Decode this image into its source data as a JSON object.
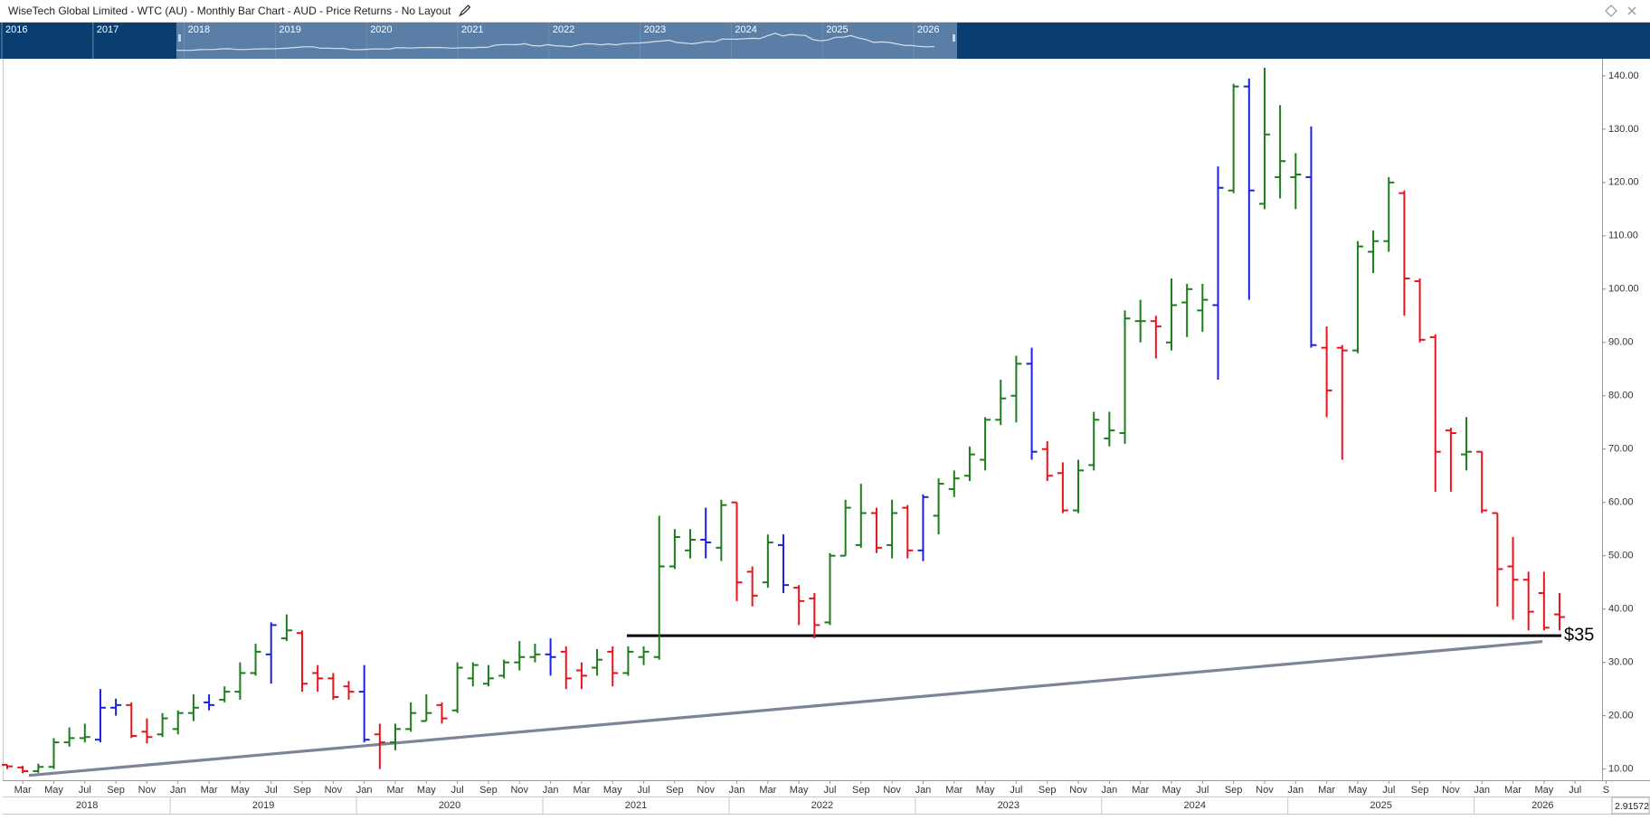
{
  "title": "WiseTech Global Limited - WTC (AU) - Monthly Bar Chart - AUD - Price Returns - No Layout",
  "navigator": {
    "years": [
      "2016",
      "2017",
      "2018",
      "2019",
      "2020",
      "2021",
      "2022",
      "2023",
      "2024",
      "2025",
      "2026"
    ]
  },
  "corner_readout": "2.91572",
  "chart_data": {
    "type": "ohlc",
    "categories": [
      null,
      "Mar",
      null,
      "May",
      null,
      "Jul",
      null,
      "Sep",
      null,
      "Nov",
      null,
      "Jan",
      null,
      "Mar",
      null,
      "May",
      null,
      "Jul",
      null,
      "Sep",
      null,
      "Nov",
      null,
      "Jan",
      null,
      "Mar",
      null,
      "May",
      null,
      "Jul",
      null,
      "Sep",
      null,
      "Nov",
      null,
      "Jan",
      null,
      "Mar",
      null,
      "May",
      null,
      "Jul",
      null,
      "Sep",
      null,
      "Nov",
      null,
      "Jan",
      null,
      "Mar",
      null,
      "May",
      null,
      "Jul",
      null,
      "Sep",
      null,
      "Nov",
      null,
      "Jan",
      null,
      "Mar",
      null,
      "May",
      null,
      "Jul",
      null,
      "Sep",
      null,
      "Nov",
      null,
      "Jan",
      null,
      "Mar",
      null,
      "May",
      null,
      "Jul",
      null,
      "Sep",
      null,
      "Nov",
      null,
      "Jan",
      null,
      "Mar",
      null,
      "May",
      null,
      "Jul",
      null,
      "Sep",
      null,
      "Nov",
      null,
      "Jan",
      null,
      "Mar",
      null,
      "May",
      null,
      "Jul",
      null,
      "S"
    ],
    "years": [
      "2018",
      "2019",
      "2020",
      "2021",
      "2022",
      "2023",
      "2024",
      "2025",
      "2026"
    ],
    "open": [
      10.8,
      10.3,
      9.6,
      10.4,
      15.0,
      15.8,
      15.5,
      21.5,
      22.0,
      17.0,
      16.5,
      17.5,
      20.5,
      22.5,
      23.0,
      24.5,
      28.0,
      31.5,
      34.5,
      35.5,
      28.0,
      27.0,
      25.5,
      24.5,
      16.5,
      15.0,
      17.5,
      19.0,
      22.0,
      21.0,
      27.0,
      26.0,
      27.5,
      30.0,
      31.0,
      31.5,
      32.0,
      28.5,
      29.0,
      32.0,
      28.0,
      31.0,
      31.0,
      48.0,
      51.0,
      53.0,
      51.5,
      60.0,
      47.0,
      45.0,
      52.0,
      44.0,
      42.0,
      37.5,
      50.0,
      52.0,
      58.0,
      52.0,
      59.0,
      51.0,
      57.5,
      62.5,
      65.0,
      68.0,
      75.5,
      80.0,
      86.0,
      70.0,
      65.5,
      58.5,
      67.0,
      72.0,
      73.0,
      94.0,
      94.0,
      90.0,
      97.5,
      96.0,
      97.0,
      118.5,
      138.0,
      116.0,
      121.0,
      121.0,
      121.0,
      89.0,
      89.0,
      88.5,
      107.0,
      109.0,
      118.0,
      101.5,
      91.0,
      73.5,
      69.0,
      69.5,
      58.0,
      48.0,
      45.5,
      43.0,
      39.0,
      null,
      null,
      null
    ],
    "high": [
      10.8,
      10.6,
      11.0,
      15.8,
      17.8,
      18.5,
      25.0,
      23.2,
      22.5,
      19.5,
      20.5,
      21.0,
      24.0,
      24.0,
      25.5,
      30.0,
      33.5,
      37.5,
      39.0,
      36.0,
      29.5,
      28.0,
      26.5,
      29.5,
      18.5,
      18.5,
      22.5,
      24.0,
      22.5,
      30.0,
      30.0,
      29.5,
      30.5,
      34.0,
      33.5,
      34.5,
      33.0,
      30.0,
      32.5,
      33.0,
      33.0,
      33.0,
      57.5,
      55.0,
      55.0,
      59.0,
      60.5,
      60.0,
      48.0,
      54.0,
      54.0,
      44.5,
      43.0,
      50.5,
      60.5,
      63.5,
      59.0,
      60.5,
      59.5,
      61.5,
      64.5,
      66.0,
      70.5,
      76.0,
      83.0,
      87.5,
      89.0,
      71.5,
      67.5,
      68.0,
      77.0,
      77.0,
      96.0,
      98.0,
      95.0,
      102.0,
      101.0,
      101.0,
      123.0,
      138.5,
      139.5,
      141.5,
      134.5,
      125.5,
      130.5,
      93.0,
      89.5,
      109.0,
      111.0,
      121.0,
      118.5,
      102.0,
      91.5,
      74.0,
      76.0,
      69.5,
      58.0,
      53.5,
      47.0,
      47.0,
      43.0,
      null,
      null,
      null
    ],
    "low": [
      10.0,
      9.2,
      9.3,
      10.0,
      14.2,
      15.0,
      15.0,
      20.0,
      15.8,
      14.8,
      16.0,
      16.5,
      19.0,
      21.0,
      22.5,
      23.0,
      27.5,
      26.0,
      34.0,
      24.5,
      24.5,
      23.0,
      23.0,
      15.0,
      10.0,
      13.5,
      17.0,
      19.0,
      18.5,
      20.5,
      25.5,
      25.5,
      27.0,
      28.5,
      30.0,
      27.5,
      25.0,
      25.0,
      27.5,
      25.5,
      27.5,
      29.5,
      30.5,
      47.5,
      49.5,
      49.5,
      49.0,
      41.5,
      40.5,
      44.0,
      43.0,
      37.0,
      34.5,
      37.0,
      50.0,
      51.5,
      50.5,
      49.5,
      49.5,
      49.0,
      54.0,
      61.0,
      64.0,
      66.0,
      74.5,
      75.0,
      68.0,
      64.0,
      58.0,
      58.0,
      66.0,
      70.5,
      71.0,
      90.0,
      87.0,
      88.5,
      91.0,
      92.0,
      83.0,
      118.0,
      98.0,
      115.0,
      117.0,
      115.0,
      89.0,
      76.0,
      68.0,
      88.0,
      103.0,
      107.0,
      95.0,
      90.0,
      62.0,
      62.0,
      66.0,
      58.0,
      40.5,
      38.0,
      36.0,
      36.0,
      36.0,
      null,
      null,
      null
    ],
    "close": [
      10.5,
      9.6,
      10.4,
      15.0,
      15.8,
      16.0,
      21.5,
      22.0,
      16.2,
      16.0,
      19.5,
      20.5,
      21.5,
      22.0,
      24.5,
      28.0,
      32.0,
      37.0,
      36.0,
      26.0,
      27.0,
      23.5,
      24.5,
      15.5,
      15.0,
      17.5,
      20.5,
      20.5,
      19.5,
      29.0,
      29.5,
      27.0,
      30.0,
      31.0,
      31.5,
      31.0,
      27.0,
      27.5,
      30.5,
      28.0,
      32.0,
      32.0,
      48.0,
      53.5,
      53.0,
      52.5,
      59.5,
      45.0,
      42.5,
      52.5,
      44.5,
      41.5,
      37.0,
      50.0,
      59.0,
      58.0,
      51.5,
      58.0,
      51.0,
      61.0,
      63.5,
      64.5,
      69.0,
      75.5,
      79.5,
      86.0,
      69.5,
      65.0,
      58.5,
      66.0,
      75.5,
      73.5,
      94.5,
      94.0,
      93.0,
      97.0,
      100.0,
      98.0,
      119.0,
      138.0,
      118.5,
      129.0,
      124.0,
      121.5,
      89.5,
      81.0,
      88.5,
      108.0,
      109.0,
      120.0,
      102.0,
      90.5,
      69.5,
      73.0,
      69.5,
      58.5,
      47.5,
      45.5,
      39.5,
      36.5,
      38.5,
      null,
      null,
      null
    ],
    "colors": [
      "#e8141c",
      "#e8141c",
      "#1d7d1d",
      "#1d7d1d",
      "#1d7d1d",
      "#1d7d1d",
      "#1a22e0",
      "#1a22e0",
      "#e8141c",
      "#e8141c",
      "#1d7d1d",
      "#1d7d1d",
      "#1d7d1d",
      "#1a22e0",
      "#1d7d1d",
      "#1d7d1d",
      "#1d7d1d",
      "#1a22e0",
      "#1d7d1d",
      "#e8141c",
      "#e8141c",
      "#e8141c",
      "#e8141c",
      "#1a22e0",
      "#e8141c",
      "#1d7d1d",
      "#1d7d1d",
      "#1d7d1d",
      "#e8141c",
      "#1d7d1d",
      "#1d7d1d",
      "#1d7d1d",
      "#1d7d1d",
      "#1d7d1d",
      "#1d7d1d",
      "#1a22e0",
      "#e8141c",
      "#e8141c",
      "#1d7d1d",
      "#e8141c",
      "#1d7d1d",
      "#1d7d1d",
      "#1d7d1d",
      "#1d7d1d",
      "#1d7d1d",
      "#1a22e0",
      "#1d7d1d",
      "#e8141c",
      "#e8141c",
      "#1d7d1d",
      "#1a22e0",
      "#e8141c",
      "#e8141c",
      "#1d7d1d",
      "#1d7d1d",
      "#1d7d1d",
      "#e8141c",
      "#1d7d1d",
      "#e8141c",
      "#1a22e0",
      "#1d7d1d",
      "#1d7d1d",
      "#1d7d1d",
      "#1d7d1d",
      "#1d7d1d",
      "#1d7d1d",
      "#1a22e0",
      "#e8141c",
      "#e8141c",
      "#1d7d1d",
      "#1d7d1d",
      "#1d7d1d",
      "#1d7d1d",
      "#1d7d1d",
      "#e8141c",
      "#1d7d1d",
      "#1d7d1d",
      "#1d7d1d",
      "#1a22e0",
      "#1d7d1d",
      "#1a22e0",
      "#1d7d1d",
      "#1d7d1d",
      "#1d7d1d",
      "#1a22e0",
      "#e8141c",
      "#e8141c",
      "#1d7d1d",
      "#1d7d1d",
      "#1d7d1d",
      "#e8141c",
      "#e8141c",
      "#e8141c",
      "#e8141c",
      "#1d7d1d",
      "#e8141c",
      "#e8141c",
      "#e8141c",
      "#e8141c",
      "#e8141c",
      "#e8141c",
      null,
      null,
      null
    ],
    "ylim": [
      7.9,
      143.2
    ],
    "yticks": [
      {
        "value": 10,
        "label": "10.00"
      },
      {
        "value": 20,
        "label": "20.00"
      },
      {
        "value": 30,
        "label": "30.00"
      },
      {
        "value": 40,
        "label": "40.00"
      },
      {
        "value": 50,
        "label": "50.00"
      },
      {
        "value": 60,
        "label": "60.00"
      },
      {
        "value": 70,
        "label": "70.00"
      },
      {
        "value": 80,
        "label": "80.00"
      },
      {
        "value": 90,
        "label": "90.00"
      },
      {
        "value": 100,
        "label": "100.00"
      },
      {
        "value": 110,
        "label": "110.00"
      },
      {
        "value": 120,
        "label": "120.00"
      },
      {
        "value": 130,
        "label": "130.00"
      },
      {
        "value": 140,
        "label": "140.00"
      }
    ],
    "hline": {
      "value": 35,
      "label": "$35",
      "color": "#000000"
    },
    "trendline": {
      "values": [
        8.8,
        33.9
      ],
      "color": "#7b8595"
    }
  }
}
